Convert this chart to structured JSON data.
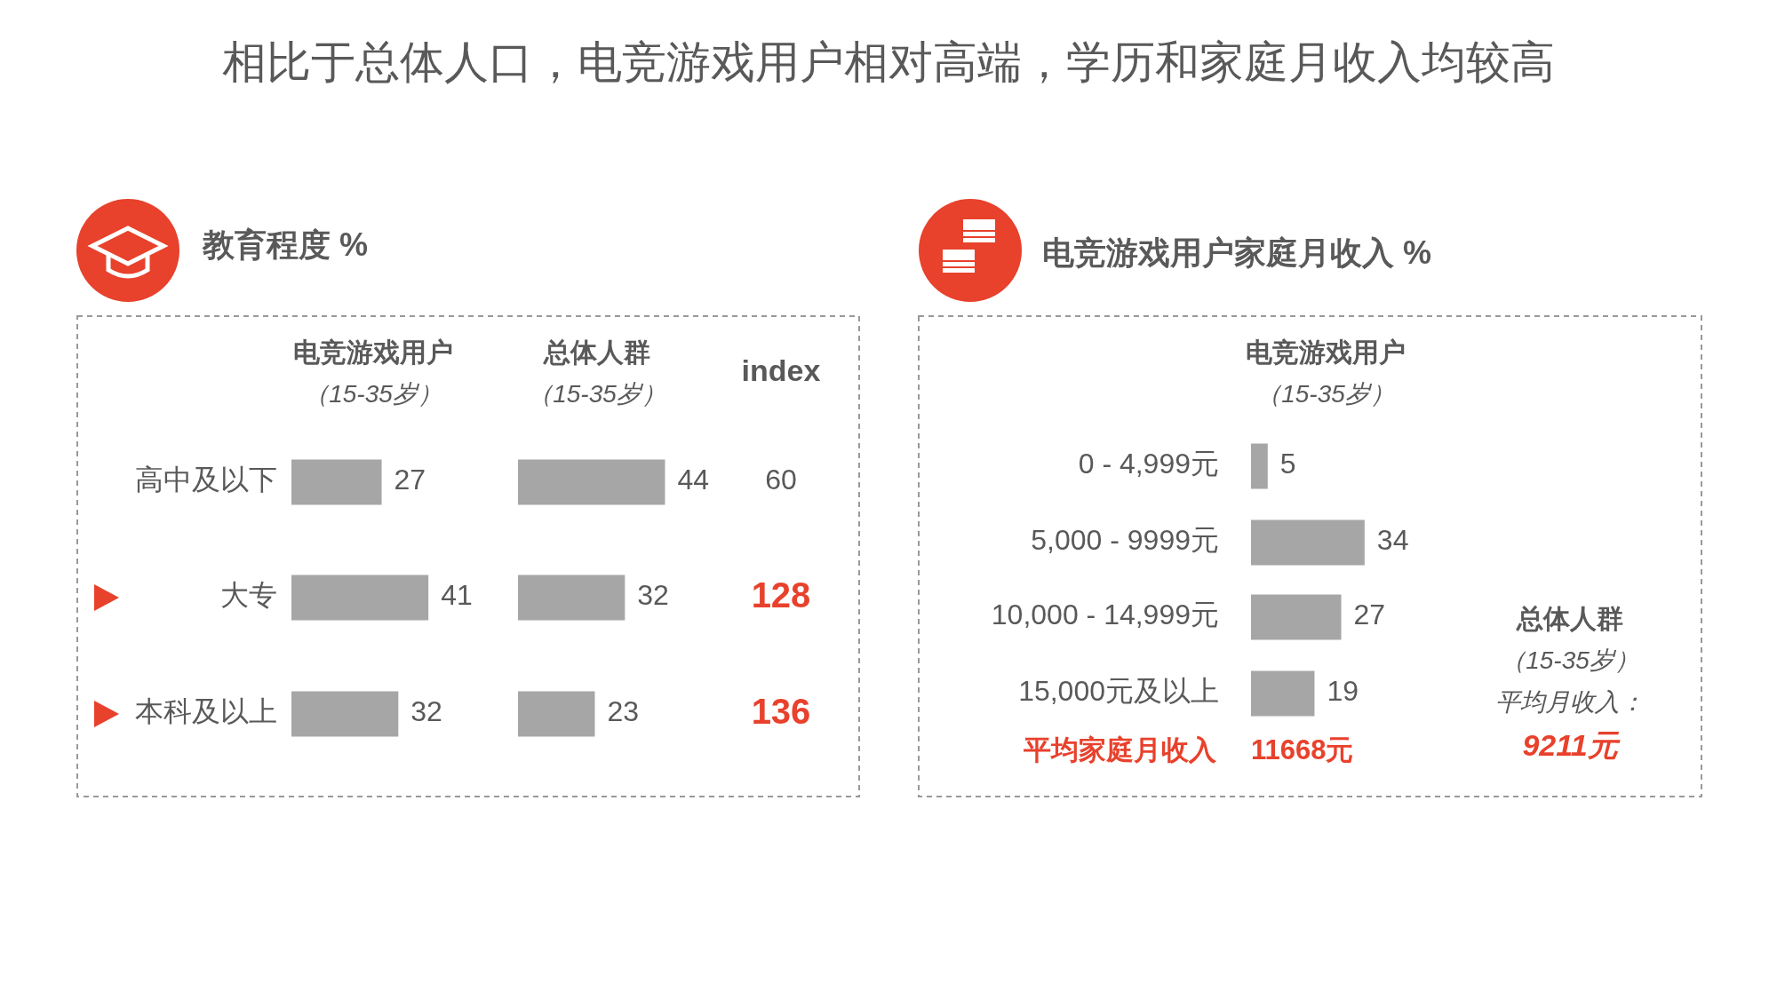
{
  "chart_data": [
    {
      "type": "bar",
      "orientation": "horizontal",
      "title": "相比于总体人口，电竞游戏用户相对高端，学历和家庭月收入均较高",
      "subtitle": "教育程度 %",
      "categories": [
        "高中及以下",
        "大专",
        "本科及以上"
      ],
      "data_labels": true,
      "series": [
        {
          "name": "电竞游戏用户（15-35岁）",
          "color": "#a6a6a6",
          "values": [
            27,
            41,
            32
          ]
        }
      ]
    },
    {
      "type": "bar",
      "orientation": "horizontal",
      "data_labels": true,
      "series": [
        {
          "name": "总体人群（15-35岁）",
          "color": "#a6a6a6",
          "values": [
            44,
            32,
            23
          ]
        }
      ]
    },
    {
      "type": "other",
      "title": "index",
      "annotations": [
        "60",
        "128",
        "136"
      ],
      "colors": [
        "#595959",
        "#e8412c",
        "#e8412c"
      ]
    },
    {
      "type": "bar",
      "orientation": "horizontal",
      "title": "电竞游戏用户家庭月收入 %",
      "categories": [
        "0 - 4,999元",
        "5,000  - 9999元",
        "10,000 - 14,999元",
        "15,000元及以上"
      ],
      "data_labels": true,
      "series": [
        {
          "name": "电竞游戏用户（15-35岁）",
          "color": "#a6a6a6",
          "values": [
            5,
            34,
            27,
            19
          ]
        }
      ],
      "annotations": [
        "平均家庭月收入",
        "11668元",
        "总体人群",
        "（15-35岁）",
        "平均月收入：",
        "9211元"
      ]
    }
  ]
}
